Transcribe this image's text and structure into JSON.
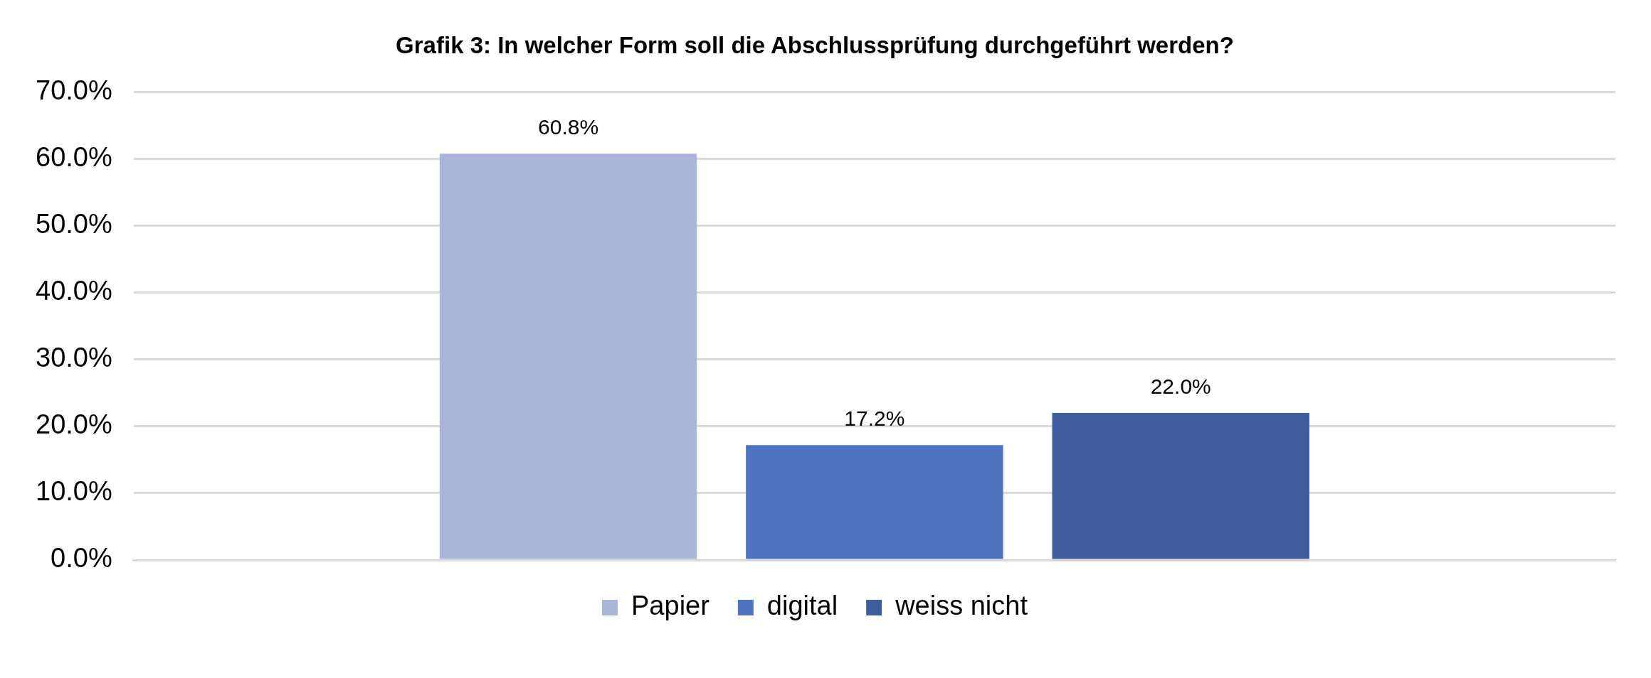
{
  "chart_data": {
    "type": "bar",
    "title": "Grafik 3: In welcher Form soll die Abschlussprüfung durchgeführt werden?",
    "categories": [
      null
    ],
    "series": [
      {
        "name": "Papier",
        "color": "#abb5d9",
        "values": [
          60.8
        ],
        "value_labels": [
          "60.8%"
        ]
      },
      {
        "name": "digital",
        "color": "#5174c0",
        "values": [
          17.2
        ],
        "value_labels": [
          "17.2%"
        ]
      },
      {
        "name": "weiss nicht",
        "color": "#405d9e",
        "values": [
          22.0
        ],
        "value_labels": [
          "22.0%"
        ]
      }
    ],
    "ylim": [
      0,
      70
    ],
    "yticks": [
      {
        "value": 0,
        "label": "0.0%"
      },
      {
        "value": 10,
        "label": "10.0%"
      },
      {
        "value": 20,
        "label": "20.0%"
      },
      {
        "value": 30,
        "label": "30.0%"
      },
      {
        "value": 40,
        "label": "40.0%"
      },
      {
        "value": 50,
        "label": "50.0%"
      },
      {
        "value": 60,
        "label": "60.0%"
      },
      {
        "value": 70,
        "label": "70.0%"
      }
    ],
    "grid": "y",
    "legend": "bottom"
  }
}
